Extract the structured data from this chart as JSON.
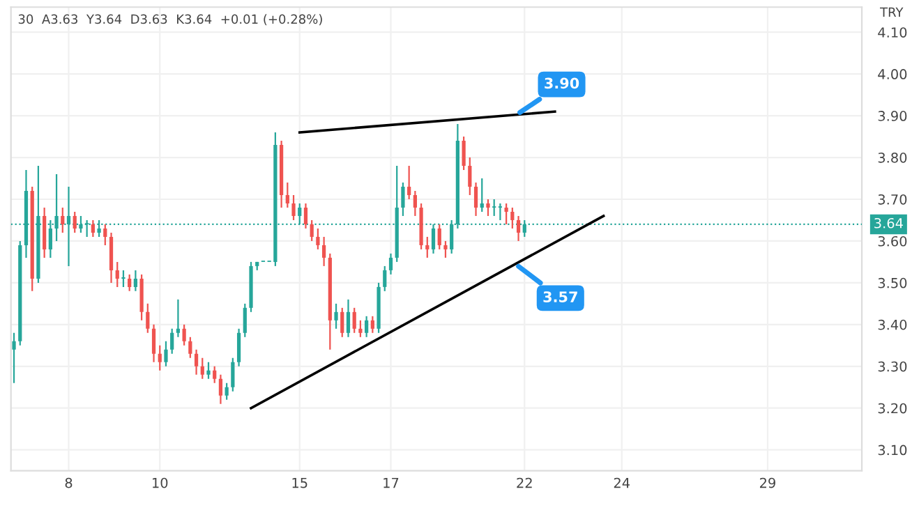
{
  "chart_data": {
    "type": "candlestick",
    "title": "30  A3.63  Y3.64  D3.63  K3.64  +0.01 (+0.28%)",
    "ylabel": "TRY",
    "categories": [
      null,
      null,
      null,
      null,
      null,
      null,
      null,
      null,
      null,
      "8",
      null,
      null,
      null,
      null,
      null,
      null,
      null,
      null,
      null,
      null,
      null,
      null,
      null,
      null,
      "10",
      null,
      null,
      null,
      null,
      null,
      null,
      null,
      null,
      null,
      null,
      null,
      null,
      null,
      null,
      null,
      null,
      null,
      null,
      null,
      null,
      null,
      null,
      "15",
      null,
      null,
      null,
      null,
      null,
      null,
      null,
      null,
      null,
      null,
      null,
      null,
      null,
      null,
      "17",
      null,
      null,
      null,
      null,
      null,
      null,
      null,
      null,
      null,
      null,
      null,
      null,
      null,
      null,
      null,
      null,
      null,
      null,
      null,
      null,
      null,
      "22",
      null,
      null,
      null,
      null,
      null,
      null,
      null,
      null,
      null,
      null,
      null,
      null,
      null,
      null,
      null,
      "24",
      null,
      null,
      null,
      null,
      null,
      null,
      null,
      null,
      null,
      null,
      null,
      null,
      null,
      null,
      null,
      null,
      null,
      null,
      null,
      null,
      null,
      null,
      null,
      "29",
      null,
      null,
      null,
      null,
      null,
      null,
      null,
      null,
      null,
      null,
      null,
      null,
      null,
      null,
      null
    ],
    "ohlc": [
      [
        3.34,
        3.38,
        3.26,
        3.36
      ],
      [
        3.36,
        3.6,
        3.35,
        3.59
      ],
      [
        3.59,
        3.77,
        3.56,
        3.72
      ],
      [
        3.72,
        3.73,
        3.48,
        3.51
      ],
      [
        3.51,
        3.78,
        3.5,
        3.66
      ],
      [
        3.66,
        3.68,
        3.56,
        3.58
      ],
      [
        3.58,
        3.65,
        3.56,
        3.63
      ],
      [
        3.63,
        3.76,
        3.6,
        3.66
      ],
      [
        3.66,
        3.68,
        3.62,
        3.64
      ],
      [
        3.64,
        3.73,
        3.54,
        3.66
      ],
      [
        3.66,
        3.67,
        3.62,
        3.63
      ],
      [
        3.63,
        3.66,
        3.62,
        3.64
      ],
      [
        3.64,
        3.65,
        3.61,
        3.64
      ],
      [
        3.64,
        3.65,
        3.61,
        3.62
      ],
      [
        3.62,
        3.65,
        3.61,
        3.63
      ],
      [
        3.63,
        3.64,
        3.59,
        3.61
      ],
      [
        3.61,
        3.62,
        3.5,
        3.53
      ],
      [
        3.53,
        3.55,
        3.49,
        3.51
      ],
      [
        3.51,
        3.53,
        3.49,
        3.51
      ],
      [
        3.51,
        3.52,
        3.48,
        3.49
      ],
      [
        3.49,
        3.53,
        3.48,
        3.51
      ],
      [
        3.51,
        3.52,
        3.41,
        3.43
      ],
      [
        3.43,
        3.45,
        3.38,
        3.39
      ],
      [
        3.39,
        3.4,
        3.31,
        3.33
      ],
      [
        3.33,
        3.35,
        3.29,
        3.31
      ],
      [
        3.31,
        3.36,
        3.3,
        3.34
      ],
      [
        3.34,
        3.39,
        3.33,
        3.38
      ],
      [
        3.38,
        3.46,
        3.37,
        3.39
      ],
      [
        3.39,
        3.4,
        3.35,
        3.36
      ],
      [
        3.36,
        3.37,
        3.32,
        3.33
      ],
      [
        3.33,
        3.34,
        3.28,
        3.3
      ],
      [
        3.3,
        3.32,
        3.27,
        3.28
      ],
      [
        3.28,
        3.31,
        3.27,
        3.29
      ],
      [
        3.29,
        3.3,
        3.26,
        3.27
      ],
      [
        3.27,
        3.28,
        3.21,
        3.23
      ],
      [
        3.23,
        3.26,
        3.22,
        3.25
      ],
      [
        3.25,
        3.32,
        3.24,
        3.31
      ],
      [
        3.31,
        3.39,
        3.3,
        3.38
      ],
      [
        3.38,
        3.45,
        3.37,
        3.44
      ],
      [
        3.44,
        3.55,
        3.43,
        3.54
      ],
      [
        3.54,
        3.55,
        3.53,
        3.55
      ],
      [
        3.55,
        3.55,
        3.55,
        3.55
      ],
      [
        3.55,
        3.55,
        3.55,
        3.55
      ],
      [
        3.55,
        3.86,
        3.54,
        3.83
      ],
      [
        3.83,
        3.84,
        3.68,
        3.71
      ],
      [
        3.71,
        3.74,
        3.68,
        3.69
      ],
      [
        3.69,
        3.71,
        3.65,
        3.66
      ],
      [
        3.66,
        3.69,
        3.64,
        3.68
      ],
      [
        3.68,
        3.69,
        3.63,
        3.64
      ],
      [
        3.64,
        3.65,
        3.6,
        3.61
      ],
      [
        3.61,
        3.63,
        3.58,
        3.59
      ],
      [
        3.59,
        3.61,
        3.54,
        3.56
      ],
      [
        3.56,
        3.57,
        3.34,
        3.41
      ],
      [
        3.41,
        3.45,
        3.39,
        3.43
      ],
      [
        3.43,
        3.44,
        3.37,
        3.38
      ],
      [
        3.38,
        3.46,
        3.37,
        3.43
      ],
      [
        3.43,
        3.44,
        3.38,
        3.39
      ],
      [
        3.39,
        3.41,
        3.37,
        3.38
      ],
      [
        3.38,
        3.42,
        3.37,
        3.41
      ],
      [
        3.41,
        3.42,
        3.38,
        3.39
      ],
      [
        3.39,
        3.5,
        3.38,
        3.49
      ],
      [
        3.49,
        3.54,
        3.48,
        3.53
      ],
      [
        3.53,
        3.57,
        3.52,
        3.56
      ],
      [
        3.56,
        3.78,
        3.55,
        3.68
      ],
      [
        3.68,
        3.74,
        3.66,
        3.73
      ],
      [
        3.73,
        3.78,
        3.7,
        3.71
      ],
      [
        3.71,
        3.72,
        3.66,
        3.68
      ],
      [
        3.68,
        3.69,
        3.58,
        3.59
      ],
      [
        3.59,
        3.61,
        3.56,
        3.58
      ],
      [
        3.58,
        3.64,
        3.57,
        3.63
      ],
      [
        3.63,
        3.64,
        3.58,
        3.59
      ],
      [
        3.59,
        3.6,
        3.56,
        3.58
      ],
      [
        3.58,
        3.65,
        3.57,
        3.64
      ],
      [
        3.64,
        3.88,
        3.63,
        3.84
      ],
      [
        3.84,
        3.85,
        3.77,
        3.78
      ],
      [
        3.78,
        3.8,
        3.71,
        3.73
      ],
      [
        3.73,
        3.74,
        3.66,
        3.68
      ],
      [
        3.68,
        3.75,
        3.67,
        3.69
      ],
      [
        3.69,
        3.7,
        3.66,
        3.68
      ],
      [
        3.68,
        3.7,
        3.66,
        3.68
      ],
      [
        3.68,
        3.69,
        3.65,
        3.68
      ],
      [
        3.68,
        3.69,
        3.64,
        3.67
      ],
      [
        3.67,
        3.68,
        3.63,
        3.65
      ],
      [
        3.65,
        3.66,
        3.6,
        3.62
      ],
      [
        3.62,
        3.65,
        3.61,
        3.64
      ],
      null,
      null,
      null,
      null,
      null,
      null,
      null,
      null,
      null,
      null,
      null,
      null,
      null,
      null,
      null,
      null,
      null,
      null,
      null,
      null,
      null,
      null,
      null,
      null,
      null,
      null,
      null,
      null,
      null,
      null,
      null,
      null,
      null,
      null,
      null,
      null,
      null,
      null,
      null,
      null,
      null,
      null,
      null,
      null,
      null,
      null,
      null,
      null,
      null,
      null,
      null,
      null,
      null,
      null,
      null
    ],
    "colors": [
      "#26a69a",
      "#26a69a",
      "#26a69a",
      "#ef5350",
      "#26a69a",
      "#ef5350",
      "#26a69a",
      "#26a69a",
      "#ef5350",
      "#26a69a",
      "#ef5350",
      "#26a69a",
      "#26a69a",
      "#ef5350",
      "#26a69a",
      "#ef5350",
      "#ef5350",
      "#ef5350",
      "#26a69a",
      "#ef5350",
      "#26a69a",
      "#ef5350",
      "#ef5350",
      "#ef5350",
      "#ef5350",
      "#26a69a",
      "#26a69a",
      "#26a69a",
      "#ef5350",
      "#ef5350",
      "#ef5350",
      "#ef5350",
      "#26a69a",
      "#ef5350",
      "#ef5350",
      "#26a69a",
      "#26a69a",
      "#26a69a",
      "#26a69a",
      "#26a69a",
      "#26a69a",
      "#26a69a",
      "#26a69a",
      "#26a69a",
      "#ef5350",
      "#ef5350",
      "#ef5350",
      "#26a69a",
      "#ef5350",
      "#ef5350",
      "#ef5350",
      "#ef5350",
      "#ef5350",
      "#26a69a",
      "#ef5350",
      "#26a69a",
      "#ef5350",
      "#ef5350",
      "#26a69a",
      "#ef5350",
      "#26a69a",
      "#26a69a",
      "#26a69a",
      "#26a69a",
      "#26a69a",
      "#ef5350",
      "#ef5350",
      "#ef5350",
      "#ef5350",
      "#26a69a",
      "#ef5350",
      "#ef5350",
      "#26a69a",
      "#26a69a",
      "#ef5350",
      "#ef5350",
      "#ef5350",
      "#26a69a",
      "#ef5350",
      "#26a69a",
      "#26a69a",
      "#ef5350",
      "#ef5350",
      "#ef5350",
      "#26a69a",
      null,
      null,
      null,
      null,
      null,
      null,
      null,
      null,
      null,
      null,
      null,
      null,
      null,
      null,
      null,
      null,
      null,
      null,
      null,
      null,
      null,
      null,
      null,
      null,
      null,
      null,
      null,
      null,
      null,
      null,
      null,
      null,
      null,
      null,
      null,
      null,
      null,
      null,
      null,
      null,
      null,
      null,
      null,
      null,
      null,
      null,
      null,
      null,
      null,
      null,
      null,
      null,
      null,
      null,
      null
    ],
    "series": [
      {
        "type": "line",
        "color": "#000000",
        "values": [
          null,
          null,
          null,
          null,
          null,
          null,
          null,
          null,
          null,
          null,
          null,
          null,
          null,
          null,
          null,
          null,
          null,
          null,
          null,
          null,
          null,
          null,
          null,
          null,
          null,
          null,
          null,
          null,
          null,
          null,
          null,
          null,
          null,
          null,
          null,
          null,
          null,
          null,
          null,
          3.2,
          null,
          null,
          null,
          null,
          null,
          null,
          null,
          null,
          null,
          null,
          null,
          null,
          null,
          null,
          null,
          null,
          null,
          null,
          null,
          null,
          null,
          null,
          null,
          null,
          null,
          null,
          null,
          null,
          null,
          null,
          null,
          null,
          null,
          null,
          null,
          null,
          null,
          null,
          null,
          null,
          null,
          null,
          null,
          null,
          null,
          null,
          null,
          null,
          null,
          null,
          null,
          null,
          null,
          null,
          null,
          null,
          null,
          3.66,
          null,
          null,
          null,
          null,
          null,
          null,
          null,
          null,
          null,
          null,
          null,
          null,
          null,
          null,
          null,
          null,
          null,
          null,
          null,
          null,
          null,
          null,
          null,
          null,
          null,
          null,
          null,
          null,
          null,
          null,
          null,
          null,
          null,
          null,
          null,
          null,
          null,
          null,
          null,
          null,
          null,
          null
        ]
      },
      {
        "type": "line",
        "color": "#000000",
        "values": [
          null,
          null,
          null,
          null,
          null,
          null,
          null,
          null,
          null,
          null,
          null,
          null,
          null,
          null,
          null,
          null,
          null,
          null,
          null,
          null,
          null,
          null,
          null,
          null,
          null,
          null,
          null,
          null,
          null,
          null,
          null,
          null,
          null,
          null,
          null,
          null,
          null,
          null,
          null,
          null,
          null,
          null,
          null,
          null,
          null,
          null,
          null,
          3.86,
          null,
          null,
          null,
          null,
          null,
          null,
          null,
          null,
          null,
          null,
          null,
          null,
          null,
          null,
          null,
          null,
          null,
          null,
          null,
          null,
          null,
          null,
          null,
          null,
          null,
          null,
          null,
          null,
          null,
          null,
          null,
          null,
          null,
          null,
          null,
          null,
          null,
          null,
          null,
          null,
          null,
          3.91,
          null,
          null,
          null,
          null,
          null,
          null,
          null,
          null,
          null,
          null,
          null,
          null,
          null,
          null,
          null,
          null,
          null,
          null,
          null,
          null,
          null,
          null,
          null,
          null,
          null,
          null,
          null,
          null,
          null,
          null,
          null,
          null,
          null,
          null,
          null,
          null,
          null,
          null,
          null,
          null,
          null,
          null,
          null,
          null,
          null,
          null,
          null,
          null,
          null,
          null
        ]
      }
    ],
    "annotations": [
      "3.90",
      "3.57"
    ],
    "ref_lines": [
      {
        "axis": "y",
        "value": 3.64,
        "label": "3.64",
        "color": "#26a69a",
        "line_style": "dotted"
      }
    ],
    "ylim": [
      3.05,
      4.16
    ],
    "yticks": [
      {
        "value": 3.1,
        "label": "3.10"
      },
      {
        "value": 3.2,
        "label": "3.20"
      },
      {
        "value": 3.3,
        "label": "3.30"
      },
      {
        "value": 3.4,
        "label": "3.40"
      },
      {
        "value": 3.5,
        "label": "3.50"
      },
      {
        "value": 3.6,
        "label": "3.60"
      },
      {
        "value": 3.7,
        "label": "3.70"
      },
      {
        "value": 3.8,
        "label": "3.80"
      },
      {
        "value": 3.9,
        "label": "3.90"
      },
      {
        "value": 4.0,
        "label": "4.00"
      },
      {
        "value": 4.1,
        "label": "4.10"
      }
    ],
    "grid": true
  }
}
